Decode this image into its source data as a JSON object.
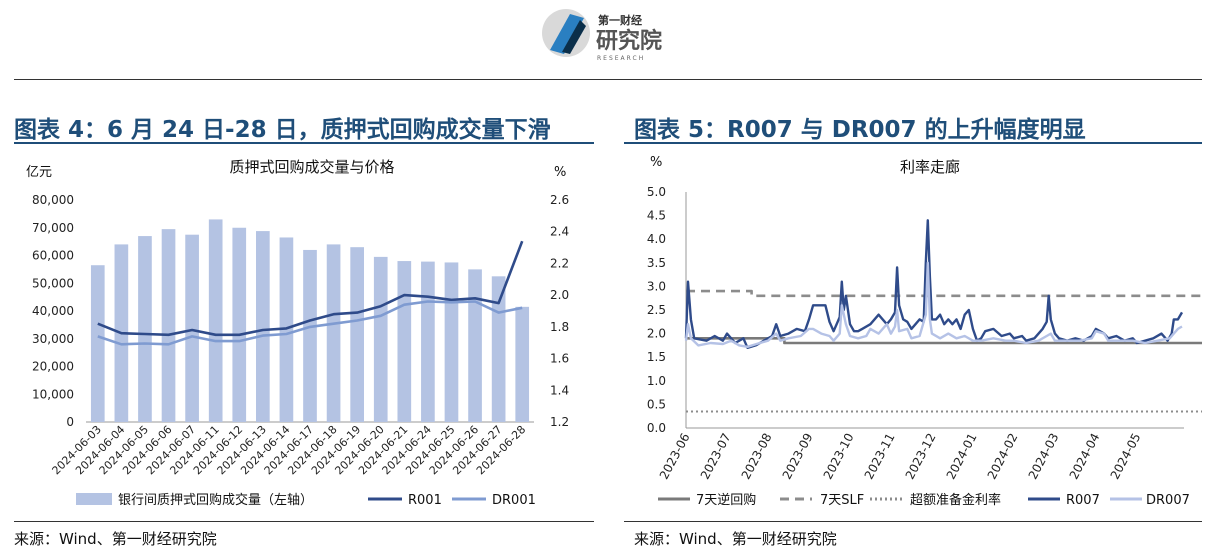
{
  "header": {
    "logo_text_top": "第一财经",
    "logo_text_main": "研究院",
    "logo_text_sub": "RESEARCH"
  },
  "left_panel": {
    "title": "图表 4：6 月 24 日-28 日，质押式回购成交量下滑",
    "source": "来源：Wind、第一财经研究院"
  },
  "right_panel": {
    "title": "图表 5：R007 与 DR007 的上升幅度明显",
    "source": "来源：Wind、第一财经研究院"
  },
  "colors": {
    "bar": "#b4c3e3",
    "r001": "#2f4b8a",
    "dr001": "#7f9bd1",
    "reverse_repo": "#7a7a7a",
    "slf": "#8c8c8c",
    "excess_reserve": "#8c8c8c",
    "r007": "#2f4b8a",
    "dr007": "#b5c2e6",
    "title_blue": "#1f4e79"
  },
  "chart_data": [
    {
      "type": "bar",
      "title": "质押式回购成交量与价格",
      "ylabel_left": "亿元",
      "ylabel_right": "%",
      "categories": [
        "2024-06-03",
        "2024-06-04",
        "2024-06-05",
        "2024-06-06",
        "2024-06-07",
        "2024-06-11",
        "2024-06-12",
        "2024-06-13",
        "2024-06-14",
        "2024-06-17",
        "2024-06-18",
        "2024-06-19",
        "2024-06-20",
        "2024-06-21",
        "2024-06-24",
        "2024-06-25",
        "2024-06-26",
        "2024-06-27",
        "2024-06-28"
      ],
      "ylim_left": [
        0,
        80000
      ],
      "yticks_left": [
        "0",
        "10,000",
        "20,000",
        "30,000",
        "40,000",
        "50,000",
        "60,000",
        "70,000",
        "80,000"
      ],
      "ylim_right": [
        1.2,
        2.6
      ],
      "yticks_right": [
        "1.2",
        "1.4",
        "1.6",
        "1.8",
        "2.0",
        "2.2",
        "2.4",
        "2.6"
      ],
      "series": [
        {
          "name": "银行间质押式回购成交量（左轴）",
          "kind": "bar",
          "axis": "left",
          "values": [
            56500,
            64000,
            67000,
            69500,
            67500,
            73000,
            70000,
            68800,
            66500,
            62000,
            64000,
            63000,
            59500,
            58000,
            57800,
            57500,
            55000,
            52500,
            41500
          ]
        },
        {
          "name": "R001",
          "kind": "line",
          "axis": "right",
          "values": [
            1.82,
            1.76,
            1.755,
            1.75,
            1.78,
            1.75,
            1.75,
            1.78,
            1.79,
            1.84,
            1.88,
            1.89,
            1.93,
            2.0,
            1.99,
            1.97,
            1.98,
            1.95,
            2.34
          ]
        },
        {
          "name": "DR001",
          "kind": "line",
          "axis": "right",
          "values": [
            1.74,
            1.69,
            1.695,
            1.69,
            1.74,
            1.71,
            1.71,
            1.745,
            1.755,
            1.8,
            1.82,
            1.84,
            1.87,
            1.94,
            1.96,
            1.955,
            1.96,
            1.89,
            1.92
          ]
        }
      ]
    },
    {
      "type": "line",
      "title": "利率走廊",
      "ylabel": "%",
      "ylim": [
        0,
        5
      ],
      "yticks": [
        "0.0",
        "0.5",
        "1.0",
        "1.5",
        "2.0",
        "2.5",
        "3.0",
        "3.5",
        "4.0",
        "4.5",
        "5.0"
      ],
      "xticks": [
        "2023-06",
        "2023-07",
        "2023-08",
        "2023-09",
        "2023-10",
        "2023-11",
        "2023-12",
        "2024-01",
        "2024-02",
        "2024-03",
        "2024-04",
        "2024-05"
      ],
      "series": [
        {
          "name": "7天逆回购",
          "style": "solid",
          "steps": [
            [
              0,
              1.9
            ],
            [
              2.4,
              1.8
            ],
            [
              12.95,
              1.8
            ]
          ]
        },
        {
          "name": "7天SLF",
          "style": "dashed",
          "steps": [
            [
              0,
              2.9
            ],
            [
              1.6,
              2.8
            ],
            [
              12.95,
              2.8
            ]
          ]
        },
        {
          "name": "超额准备金利率",
          "style": "dotted",
          "steps": [
            [
              0,
              0.35
            ],
            [
              12.95,
              0.35
            ]
          ]
        },
        {
          "name": "R007",
          "style": "solid",
          "points": [
            [
              0.0,
              1.9
            ],
            [
              0.05,
              3.1
            ],
            [
              0.12,
              2.3
            ],
            [
              0.2,
              1.9
            ],
            [
              0.5,
              1.85
            ],
            [
              0.7,
              1.95
            ],
            [
              0.9,
              1.85
            ],
            [
              1.0,
              2.0
            ],
            [
              1.2,
              1.8
            ],
            [
              1.4,
              1.9
            ],
            [
              1.5,
              1.7
            ],
            [
              1.7,
              1.75
            ],
            [
              1.9,
              1.85
            ],
            [
              2.1,
              1.95
            ],
            [
              2.2,
              2.2
            ],
            [
              2.3,
              1.95
            ],
            [
              2.5,
              2.0
            ],
            [
              2.7,
              2.1
            ],
            [
              2.9,
              2.05
            ],
            [
              3.0,
              2.3
            ],
            [
              3.1,
              2.6
            ],
            [
              3.3,
              2.6
            ],
            [
              3.4,
              2.6
            ],
            [
              3.5,
              2.25
            ],
            [
              3.6,
              2.05
            ],
            [
              3.75,
              2.35
            ],
            [
              3.8,
              3.1
            ],
            [
              3.85,
              2.5
            ],
            [
              3.9,
              2.8
            ],
            [
              4.0,
              2.2
            ],
            [
              4.1,
              2.05
            ],
            [
              4.2,
              2.05
            ],
            [
              4.3,
              2.1
            ],
            [
              4.5,
              2.2
            ],
            [
              4.7,
              2.4
            ],
            [
              4.8,
              2.3
            ],
            [
              4.9,
              2.2
            ],
            [
              5.0,
              2.3
            ],
            [
              5.1,
              2.45
            ],
            [
              5.15,
              3.4
            ],
            [
              5.2,
              2.6
            ],
            [
              5.3,
              2.3
            ],
            [
              5.4,
              2.25
            ],
            [
              5.5,
              2.1
            ],
            [
              5.6,
              2.2
            ],
            [
              5.7,
              2.3
            ],
            [
              5.8,
              2.25
            ],
            [
              5.85,
              3.5
            ],
            [
              5.9,
              4.4
            ],
            [
              5.95,
              3.2
            ],
            [
              6.0,
              2.3
            ],
            [
              6.1,
              2.3
            ],
            [
              6.2,
              2.4
            ],
            [
              6.3,
              2.2
            ],
            [
              6.4,
              2.3
            ],
            [
              6.5,
              2.2
            ],
            [
              6.6,
              2.3
            ],
            [
              6.7,
              2.1
            ],
            [
              6.8,
              2.4
            ],
            [
              6.9,
              2.5
            ],
            [
              7.0,
              2.1
            ],
            [
              7.1,
              1.85
            ],
            [
              7.2,
              1.9
            ],
            [
              7.3,
              2.05
            ],
            [
              7.5,
              2.1
            ],
            [
              7.7,
              1.95
            ],
            [
              7.9,
              2.0
            ],
            [
              8.0,
              1.9
            ],
            [
              8.2,
              1.95
            ],
            [
              8.3,
              1.85
            ],
            [
              8.5,
              1.9
            ],
            [
              8.7,
              2.1
            ],
            [
              8.8,
              2.25
            ],
            [
              8.85,
              2.8
            ],
            [
              8.9,
              2.3
            ],
            [
              9.0,
              2.0
            ],
            [
              9.1,
              1.9
            ],
            [
              9.3,
              1.85
            ],
            [
              9.5,
              1.9
            ],
            [
              9.7,
              1.85
            ],
            [
              9.9,
              1.95
            ],
            [
              10.0,
              2.1
            ],
            [
              10.2,
              2.0
            ],
            [
              10.3,
              1.9
            ],
            [
              10.5,
              1.95
            ],
            [
              10.7,
              1.85
            ],
            [
              10.9,
              1.9
            ],
            [
              11.0,
              1.8
            ],
            [
              11.2,
              1.85
            ],
            [
              11.4,
              1.9
            ],
            [
              11.6,
              2.0
            ],
            [
              11.75,
              1.85
            ],
            [
              11.85,
              2.0
            ],
            [
              11.9,
              2.3
            ],
            [
              12.0,
              2.3
            ],
            [
              12.1,
              2.45
            ]
          ]
        },
        {
          "name": "DR007",
          "style": "solid",
          "points": [
            [
              0.0,
              1.85
            ],
            [
              0.05,
              2.2
            ],
            [
              0.12,
              1.9
            ],
            [
              0.3,
              1.75
            ],
            [
              0.6,
              1.8
            ],
            [
              0.9,
              1.78
            ],
            [
              1.1,
              1.85
            ],
            [
              1.3,
              1.75
            ],
            [
              1.5,
              1.72
            ],
            [
              1.8,
              1.8
            ],
            [
              2.0,
              1.85
            ],
            [
              2.2,
              2.0
            ],
            [
              2.3,
              1.85
            ],
            [
              2.5,
              1.9
            ],
            [
              2.8,
              1.95
            ],
            [
              3.0,
              2.1
            ],
            [
              3.1,
              2.1
            ],
            [
              3.3,
              2.0
            ],
            [
              3.5,
              1.95
            ],
            [
              3.6,
              1.85
            ],
            [
              3.75,
              2.0
            ],
            [
              3.8,
              2.6
            ],
            [
              3.9,
              2.2
            ],
            [
              4.0,
              1.95
            ],
            [
              4.2,
              1.9
            ],
            [
              4.4,
              1.95
            ],
            [
              4.5,
              2.1
            ],
            [
              4.7,
              2.0
            ],
            [
              4.9,
              2.2
            ],
            [
              5.0,
              2.0
            ],
            [
              5.1,
              2.15
            ],
            [
              5.15,
              2.5
            ],
            [
              5.2,
              2.05
            ],
            [
              5.4,
              2.1
            ],
            [
              5.5,
              1.9
            ],
            [
              5.7,
              1.95
            ],
            [
              5.85,
              2.4
            ],
            [
              5.9,
              3.5
            ],
            [
              5.95,
              2.3
            ],
            [
              6.0,
              2.0
            ],
            [
              6.2,
              1.9
            ],
            [
              6.4,
              2.0
            ],
            [
              6.6,
              1.9
            ],
            [
              6.8,
              1.95
            ],
            [
              7.0,
              1.85
            ],
            [
              7.2,
              1.85
            ],
            [
              7.5,
              1.9
            ],
            [
              7.8,
              1.85
            ],
            [
              8.0,
              1.85
            ],
            [
              8.3,
              1.8
            ],
            [
              8.6,
              1.85
            ],
            [
              8.8,
              1.95
            ],
            [
              8.9,
              2.0
            ],
            [
              9.0,
              1.85
            ],
            [
              9.3,
              1.85
            ],
            [
              9.6,
              1.85
            ],
            [
              9.9,
              1.9
            ],
            [
              10.0,
              2.05
            ],
            [
              10.2,
              2.0
            ],
            [
              10.3,
              1.85
            ],
            [
              10.6,
              1.85
            ],
            [
              10.9,
              1.85
            ],
            [
              11.2,
              1.8
            ],
            [
              11.5,
              1.85
            ],
            [
              11.8,
              1.9
            ],
            [
              11.9,
              2.0
            ],
            [
              12.0,
              2.1
            ],
            [
              12.1,
              2.15
            ]
          ]
        }
      ]
    }
  ]
}
